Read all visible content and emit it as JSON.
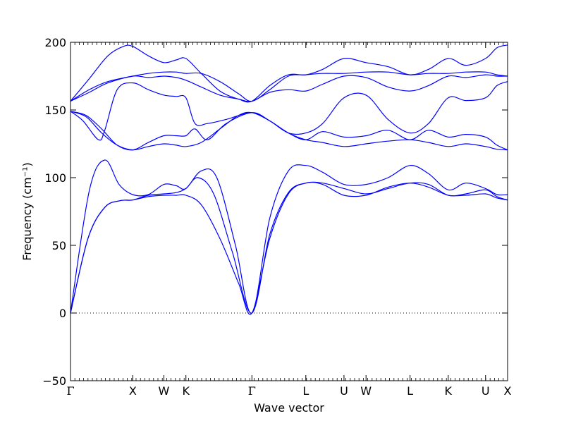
{
  "chart_data": {
    "type": "line",
    "title": "",
    "xlabel": "Wave vector",
    "ylabel": "Frequency (cm⁻¹)",
    "ylim": [
      -50,
      200
    ],
    "yticks": [
      -50,
      0,
      50,
      100,
      150,
      200
    ],
    "zero_line": "dotted",
    "grid": false,
    "legend": "none",
    "line_color": "#0000ff",
    "xticks": [
      {
        "label": "Γ",
        "x": 0.0
      },
      {
        "label": "X",
        "x": 1.0
      },
      {
        "label": "W",
        "x": 1.5
      },
      {
        "label": "K",
        "x": 1.854
      },
      {
        "label": "Γ",
        "x": 2.914
      },
      {
        "label": "L",
        "x": 3.78
      },
      {
        "label": "U",
        "x": 4.393
      },
      {
        "label": "W",
        "x": 4.747
      },
      {
        "label": "L",
        "x": 5.454
      },
      {
        "label": "K",
        "x": 6.067
      },
      {
        "label": "U",
        "x": 6.667
      },
      {
        "label": "X",
        "x": 7.021
      }
    ],
    "xlim": [
      0,
      7.021
    ],
    "series": [
      {
        "x": [
          0,
          0.28,
          0.55,
          0.8,
          1.0,
          1.25,
          1.5,
          1.7,
          1.854,
          2.1,
          2.4,
          2.7,
          2.914,
          3.2,
          3.5,
          3.78,
          4.05,
          4.393,
          4.747,
          5.1,
          5.454,
          5.75,
          6.067,
          6.35,
          6.667,
          6.85,
          7.021
        ],
        "y": [
          0,
          55,
          78,
          83,
          83.5,
          86,
          87,
          87,
          87,
          80,
          55,
          22,
          0,
          55,
          88,
          96,
          95,
          87,
          87,
          93,
          96,
          93,
          87,
          87,
          88,
          85,
          83.5
        ]
      },
      {
        "x": [
          0,
          0.28,
          0.55,
          0.8,
          1.0,
          1.25,
          1.5,
          1.7,
          1.854,
          2.05,
          2.3,
          2.6,
          2.914,
          3.2,
          3.5,
          3.78,
          4.05,
          4.393,
          4.747,
          5.1,
          5.454,
          5.75,
          6.067,
          6.35,
          6.667,
          6.85,
          7.021
        ],
        "y": [
          0,
          55,
          78,
          83,
          83.5,
          87,
          88,
          89,
          92,
          100,
          88,
          45,
          0,
          58,
          89,
          96,
          96,
          92,
          88,
          92,
          96,
          95,
          87,
          88,
          91,
          86,
          83.5
        ]
      },
      {
        "x": [
          0,
          0.3,
          0.55,
          0.78,
          1.0,
          1.25,
          1.5,
          1.7,
          1.854,
          2.1,
          2.35,
          2.65,
          2.914,
          3.2,
          3.5,
          3.78,
          4.05,
          4.393,
          4.747,
          5.1,
          5.454,
          5.75,
          6.067,
          6.35,
          6.667,
          6.85,
          7.021
        ],
        "y": [
          0,
          90,
          113,
          95,
          87.5,
          87.5,
          95,
          94,
          92,
          105,
          100,
          50,
          0,
          70,
          105,
          109,
          104,
          95,
          95,
          100,
          109,
          103,
          91,
          96,
          92,
          87.5,
          87.5
        ]
      },
      {
        "x": [
          0,
          0.25,
          0.5,
          0.75,
          1.0,
          1.25,
          1.5,
          1.7,
          1.854,
          2.1,
          2.4,
          2.7,
          2.914,
          3.2,
          3.5,
          3.78,
          4.05,
          4.393,
          4.747,
          5.1,
          5.454,
          5.75,
          6.067,
          6.35,
          6.667,
          6.85,
          7.021
        ],
        "y": [
          149,
          145,
          133,
          124,
          120.5,
          123,
          125,
          124,
          123,
          126,
          136,
          146,
          148,
          142,
          133,
          128,
          126,
          123,
          125,
          127,
          128,
          126,
          123,
          125,
          123,
          121,
          120.5
        ]
      },
      {
        "x": [
          0,
          0.25,
          0.5,
          0.75,
          1.0,
          1.25,
          1.5,
          1.7,
          1.854,
          2.0,
          2.2,
          2.5,
          2.914,
          3.2,
          3.5,
          3.78,
          4.05,
          4.393,
          4.747,
          5.1,
          5.454,
          5.75,
          6.067,
          6.35,
          6.667,
          6.85,
          7.021
        ],
        "y": [
          149,
          146,
          136,
          124,
          120.5,
          126,
          131,
          131,
          131,
          136,
          128,
          140,
          148,
          142,
          133,
          128,
          134,
          130,
          131,
          135,
          128,
          135,
          130,
          132,
          130,
          124,
          120.5
        ]
      },
      {
        "x": [
          0,
          0.2,
          0.45,
          0.55,
          0.75,
          1.0,
          1.25,
          1.5,
          1.7,
          1.854,
          2.0,
          2.2,
          2.5,
          2.914,
          3.2,
          3.5,
          3.78,
          4.05,
          4.393,
          4.747,
          5.1,
          5.454,
          5.75,
          6.067,
          6.35,
          6.667,
          6.85,
          7.021
        ],
        "y": [
          149,
          142,
          128,
          135,
          165,
          170,
          165,
          161,
          160,
          159,
          140,
          140,
          143,
          148,
          142,
          133,
          133,
          140,
          159,
          161,
          143,
          133,
          140,
          159,
          157,
          159,
          168,
          171
        ]
      },
      {
        "x": [
          0,
          0.3,
          0.6,
          1.0,
          1.25,
          1.5,
          1.7,
          1.854,
          2.1,
          2.4,
          2.7,
          2.914,
          3.2,
          3.5,
          3.78,
          4.05,
          4.393,
          4.747,
          5.1,
          5.454,
          5.75,
          6.067,
          6.35,
          6.667,
          6.85,
          7.021
        ],
        "y": [
          156.5,
          163,
          170,
          175,
          174,
          175,
          174,
          172,
          167,
          161,
          158,
          156.5,
          163,
          165,
          164,
          169,
          175,
          174,
          167,
          164,
          168,
          175,
          174,
          176,
          175,
          175
        ]
      },
      {
        "x": [
          0,
          0.3,
          0.6,
          1.0,
          1.25,
          1.5,
          1.7,
          1.854,
          2.1,
          2.4,
          2.7,
          2.914,
          3.2,
          3.5,
          3.78,
          4.05,
          4.393,
          4.747,
          5.1,
          5.454,
          5.75,
          6.067,
          6.35,
          6.667,
          6.85,
          7.021
        ],
        "y": [
          156.5,
          165,
          171,
          175,
          177,
          178,
          178,
          177,
          177,
          171,
          162,
          156.5,
          165,
          175,
          176,
          177,
          177,
          178,
          178,
          176,
          177,
          177,
          178,
          178,
          176,
          175
        ]
      },
      {
        "x": [
          0,
          0.3,
          0.6,
          0.85,
          1.0,
          1.25,
          1.5,
          1.7,
          1.854,
          2.1,
          2.4,
          2.7,
          2.914,
          3.2,
          3.5,
          3.78,
          4.05,
          4.393,
          4.747,
          5.1,
          5.454,
          5.75,
          6.067,
          6.35,
          6.667,
          6.85,
          7.021
        ],
        "y": [
          156.5,
          173,
          190,
          197,
          197,
          190,
          185,
          187,
          188,
          177,
          164,
          158,
          156.5,
          168,
          176,
          176,
          180,
          188,
          185,
          182,
          176,
          180,
          188,
          183,
          188,
          196,
          198
        ]
      }
    ]
  }
}
